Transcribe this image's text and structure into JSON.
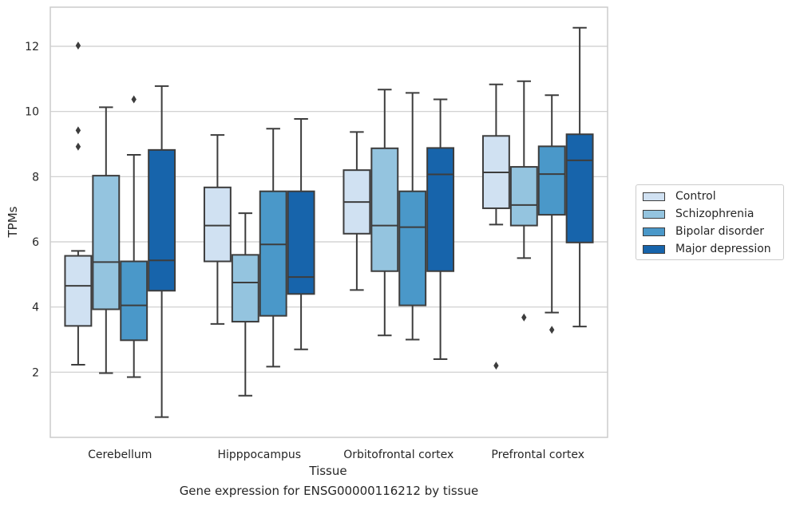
{
  "caption": "Gene expression for ENSG00000116212 by tissue",
  "chart_data": {
    "type": "box",
    "xlabel": "Tissue",
    "ylabel": "TPMs",
    "ylim": [
      0,
      13.2
    ],
    "yticks": [
      2,
      4,
      6,
      8,
      10,
      12
    ],
    "grid": "horizontal",
    "legend_position": "right",
    "categories": [
      "Cerebellum",
      "Hipppocampus",
      "Orbitofrontal cortex",
      "Prefrontal cortex"
    ],
    "series": [
      {
        "name": "Control",
        "color": "#d0e1f2",
        "boxes": [
          {
            "whisker_low": 2.23,
            "q1": 3.42,
            "median": 4.65,
            "q3": 5.57,
            "whisker_high": 5.72,
            "outliers": [
              8.92,
              9.42,
              12.02
            ]
          },
          {
            "whisker_low": 3.48,
            "q1": 5.4,
            "median": 6.5,
            "q3": 7.67,
            "whisker_high": 9.28,
            "outliers": []
          },
          {
            "whisker_low": 4.52,
            "q1": 6.25,
            "median": 7.22,
            "q3": 8.2,
            "whisker_high": 9.37,
            "outliers": []
          },
          {
            "whisker_low": 6.53,
            "q1": 7.03,
            "median": 8.13,
            "q3": 9.25,
            "whisker_high": 10.83,
            "outliers": [
              2.2
            ]
          }
        ]
      },
      {
        "name": "Schizophrenia",
        "color": "#94c4df",
        "boxes": [
          {
            "whisker_low": 1.97,
            "q1": 3.93,
            "median": 5.38,
            "q3": 8.03,
            "whisker_high": 10.13,
            "outliers": []
          },
          {
            "whisker_low": 1.28,
            "q1": 3.55,
            "median": 4.75,
            "q3": 5.6,
            "whisker_high": 6.88,
            "outliers": []
          },
          {
            "whisker_low": 3.13,
            "q1": 5.1,
            "median": 6.5,
            "q3": 8.87,
            "whisker_high": 10.67,
            "outliers": []
          },
          {
            "whisker_low": 5.5,
            "q1": 6.5,
            "median": 7.13,
            "q3": 8.3,
            "whisker_high": 10.93,
            "outliers": [
              3.68
            ]
          }
        ]
      },
      {
        "name": "Bipolar disorder",
        "color": "#4a98c9",
        "boxes": [
          {
            "whisker_low": 1.85,
            "q1": 2.98,
            "median": 4.05,
            "q3": 5.4,
            "whisker_high": 8.67,
            "outliers": [
              10.37
            ]
          },
          {
            "whisker_low": 2.17,
            "q1": 3.73,
            "median": 5.92,
            "q3": 7.55,
            "whisker_high": 9.47,
            "outliers": []
          },
          {
            "whisker_low": 3.0,
            "q1": 4.05,
            "median": 6.45,
            "q3": 7.55,
            "whisker_high": 10.57,
            "outliers": []
          },
          {
            "whisker_low": 3.83,
            "q1": 6.83,
            "median": 8.08,
            "q3": 8.93,
            "whisker_high": 10.5,
            "outliers": [
              3.3
            ]
          }
        ]
      },
      {
        "name": "Major depression",
        "color": "#1764ab",
        "boxes": [
          {
            "whisker_low": 0.62,
            "q1": 4.5,
            "median": 5.43,
            "q3": 8.82,
            "whisker_high": 10.78,
            "outliers": []
          },
          {
            "whisker_low": 2.7,
            "q1": 4.4,
            "median": 4.92,
            "q3": 7.55,
            "whisker_high": 9.77,
            "outliers": []
          },
          {
            "whisker_low": 2.4,
            "q1": 5.1,
            "median": 8.07,
            "q3": 8.88,
            "whisker_high": 10.37,
            "outliers": []
          },
          {
            "whisker_low": 3.4,
            "q1": 5.98,
            "median": 8.5,
            "q3": 9.3,
            "whisker_high": 12.57,
            "outliers": []
          }
        ]
      }
    ]
  }
}
